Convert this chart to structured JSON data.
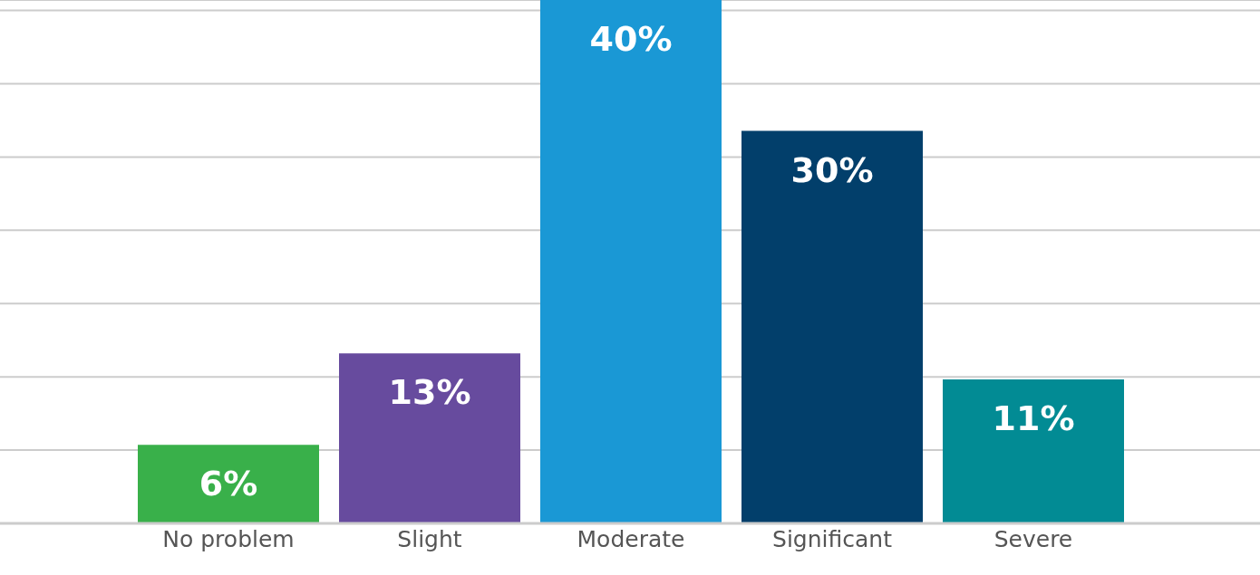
{
  "chart_data": {
    "type": "bar",
    "categories": [
      "No problem",
      "Slight",
      "Moderate",
      "Significant",
      "Severe"
    ],
    "values": [
      6,
      13,
      40,
      30,
      11
    ],
    "colors": [
      "#39b04a",
      "#674b9e",
      "#1a98d5",
      "#023f6b",
      "#028b94"
    ],
    "value_labels": [
      "6%",
      "13%",
      "40%",
      "30%",
      "11%"
    ],
    "ylim": [
      0,
      40
    ],
    "yticks": [
      {
        "value": 0,
        "label": null
      },
      {
        "value": 5.6,
        "label": null
      },
      {
        "value": 11.2,
        "label": null
      },
      {
        "value": 16.8,
        "label": null
      },
      {
        "value": 22.4,
        "label": null
      },
      {
        "value": 28,
        "label": null
      },
      {
        "value": 33.6,
        "label": null
      },
      {
        "value": 39.2,
        "label": null
      }
    ],
    "tick_labels": "x",
    "grid": "y",
    "legend": false
  }
}
